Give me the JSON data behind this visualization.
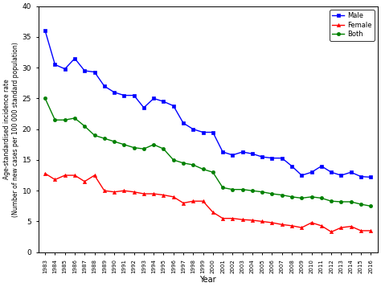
{
  "years": [
    1983,
    1984,
    1985,
    1986,
    1987,
    1988,
    1989,
    1990,
    1991,
    1992,
    1993,
    1994,
    1995,
    1996,
    1997,
    1998,
    1999,
    2000,
    2001,
    2002,
    2003,
    2004,
    2005,
    2006,
    2007,
    2008,
    2009,
    2010,
    2011,
    2012,
    2013,
    2014,
    2015,
    2016
  ],
  "male": [
    36.0,
    30.5,
    29.8,
    31.5,
    29.5,
    29.3,
    27.0,
    26.0,
    25.5,
    25.5,
    23.5,
    25.0,
    24.5,
    23.8,
    21.0,
    20.0,
    19.5,
    19.5,
    16.3,
    15.8,
    16.3,
    16.0,
    15.5,
    15.3,
    15.3,
    14.0,
    12.5,
    13.0,
    14.0,
    13.0,
    12.5,
    13.0,
    12.3,
    12.2
  ],
  "female": [
    12.8,
    11.8,
    12.5,
    12.5,
    11.5,
    12.5,
    10.0,
    9.8,
    10.0,
    9.8,
    9.5,
    9.5,
    9.3,
    9.0,
    8.0,
    8.3,
    8.3,
    6.5,
    5.5,
    5.5,
    5.3,
    5.2,
    5.0,
    4.8,
    4.5,
    4.3,
    4.0,
    4.8,
    4.3,
    3.3,
    4.0,
    4.2,
    3.5,
    3.5
  ],
  "both": [
    25.0,
    21.5,
    21.5,
    21.8,
    20.5,
    19.0,
    18.5,
    18.0,
    17.5,
    17.0,
    16.8,
    17.5,
    16.8,
    15.0,
    14.5,
    14.2,
    13.5,
    13.0,
    10.5,
    10.2,
    10.2,
    10.0,
    9.8,
    9.5,
    9.3,
    9.0,
    8.8,
    9.0,
    8.8,
    8.3,
    8.2,
    8.2,
    7.8,
    7.5
  ],
  "male_color": "#0000FF",
  "female_color": "#FF0000",
  "both_color": "#008000",
  "ylabel_line1": "Age-standardised incidence rate",
  "ylabel_line2": "(Number of new cases per 100 000 standard population)",
  "xlabel": "Year",
  "ylim": [
    0,
    40
  ],
  "yticks": [
    0,
    5,
    10,
    15,
    20,
    25,
    30,
    35,
    40
  ],
  "legend_labels": [
    "Male",
    "Female",
    "Both"
  ]
}
